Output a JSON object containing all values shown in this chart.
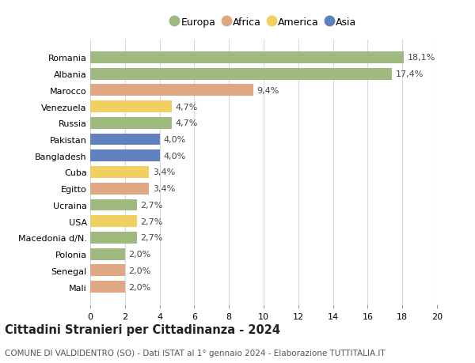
{
  "countries": [
    "Romania",
    "Albania",
    "Marocco",
    "Venezuela",
    "Russia",
    "Pakistan",
    "Bangladesh",
    "Cuba",
    "Egitto",
    "Ucraina",
    "USA",
    "Macedonia d/N.",
    "Polonia",
    "Senegal",
    "Mali"
  ],
  "values": [
    18.1,
    17.4,
    9.4,
    4.7,
    4.7,
    4.0,
    4.0,
    3.4,
    3.4,
    2.7,
    2.7,
    2.7,
    2.0,
    2.0,
    2.0
  ],
  "labels": [
    "18,1%",
    "17,4%",
    "9,4%",
    "4,7%",
    "4,7%",
    "4,0%",
    "4,0%",
    "3,4%",
    "3,4%",
    "2,7%",
    "2,7%",
    "2,7%",
    "2,0%",
    "2,0%",
    "2,0%"
  ],
  "continents": [
    "Europa",
    "Europa",
    "Africa",
    "America",
    "Europa",
    "Asia",
    "Asia",
    "America",
    "Africa",
    "Europa",
    "America",
    "Europa",
    "Europa",
    "Africa",
    "Africa"
  ],
  "continent_colors": {
    "Europa": "#9eba7e",
    "Africa": "#e0a882",
    "America": "#f0d060",
    "Asia": "#6080c0"
  },
  "legend_order": [
    "Europa",
    "Africa",
    "America",
    "Asia"
  ],
  "xlim": [
    0,
    20
  ],
  "xticks": [
    0,
    2,
    4,
    6,
    8,
    10,
    12,
    14,
    16,
    18,
    20
  ],
  "title": "Cittadini Stranieri per Cittadinanza - 2024",
  "subtitle": "COMUNE DI VALDIDENTRO (SO) - Dati ISTAT al 1° gennaio 2024 - Elaborazione TUTTITALIA.IT",
  "bg_color": "#ffffff",
  "grid_color": "#d8d8d8",
  "bar_height": 0.72,
  "label_fontsize": 8.0,
  "tick_fontsize": 8.0,
  "title_fontsize": 10.5,
  "subtitle_fontsize": 7.5
}
